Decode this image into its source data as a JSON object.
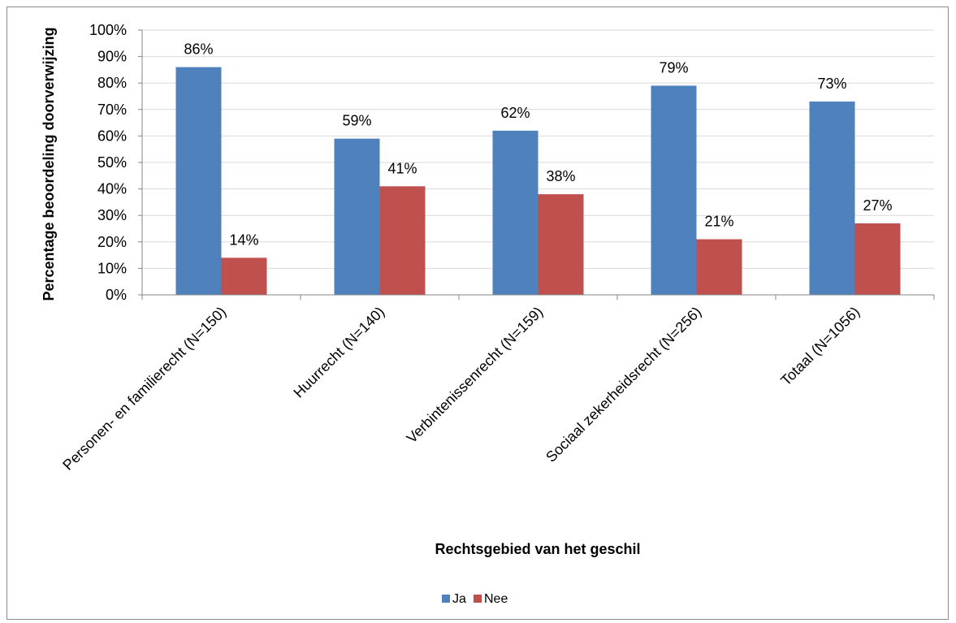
{
  "chart_data": {
    "type": "bar",
    "title": "",
    "xlabel": "Rechtsgebied van het geschil",
    "ylabel": "Percentage beoordeling doorverwijzing",
    "categories": [
      "Personen- en familierecht (N=150)",
      "Huurrecht (N=140)",
      "Verbintenissenrecht (N=159)",
      "Sociaal zekerheidsrecht (N=256)",
      "Totaal (N=1056)"
    ],
    "series": [
      {
        "name": "Ja",
        "values": [
          86,
          59,
          62,
          79,
          73
        ],
        "labels": [
          "86%",
          "59%",
          "62%",
          "79%",
          "73%"
        ],
        "color": "#4f81bd"
      },
      {
        "name": "Nee",
        "values": [
          14,
          41,
          38,
          21,
          27
        ],
        "labels": [
          "14%",
          "41%",
          "38%",
          "21%",
          "27%"
        ],
        "color": "#c0504d"
      }
    ],
    "ylim": [
      0,
      100
    ],
    "yticks": [
      "0%",
      "10%",
      "20%",
      "30%",
      "40%",
      "50%",
      "60%",
      "70%",
      "80%",
      "90%",
      "100%"
    ],
    "grid": true,
    "legend": "bottom"
  }
}
